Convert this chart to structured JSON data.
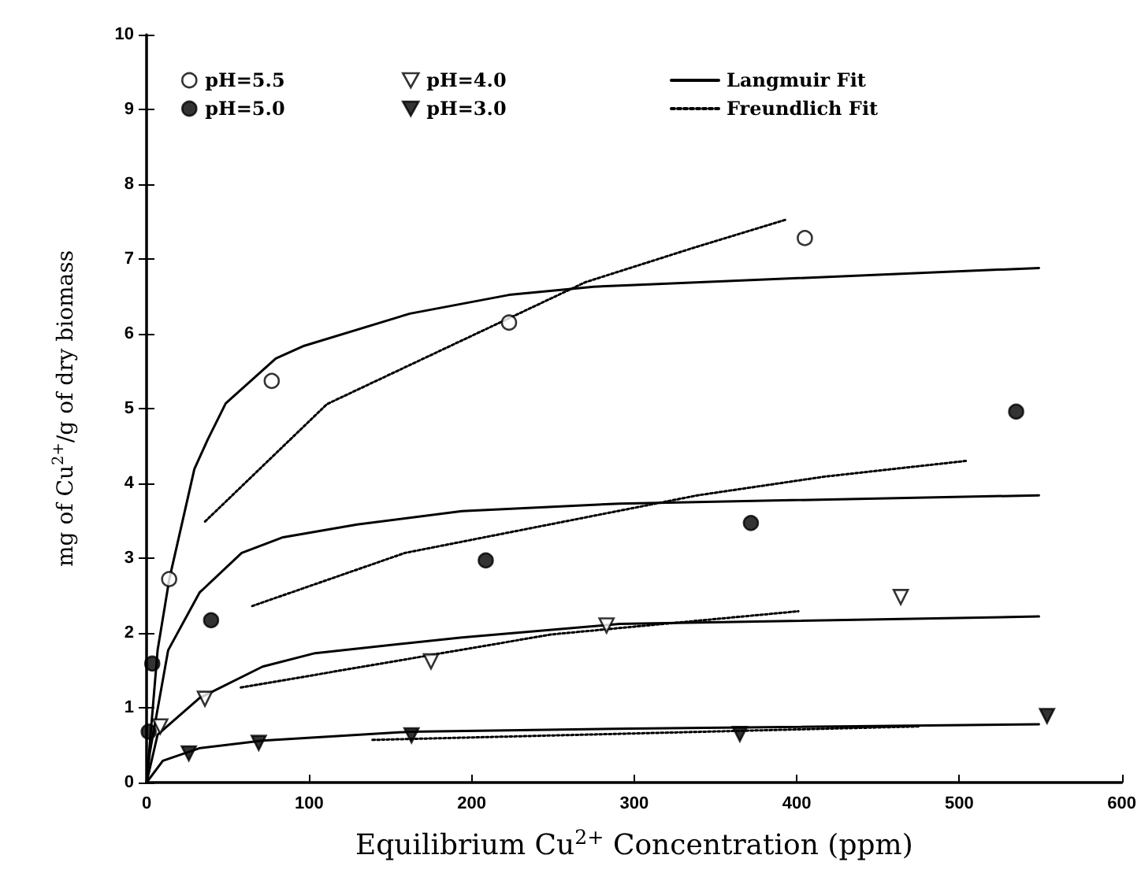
{
  "chart_data": {
    "type": "scatter",
    "xlabel": "Equilibrium Cu$^{2+}$ Concentration (ppm)",
    "ylabel": "mg of Cu$^{2+}$/g of dry biomass",
    "xlim": [
      0,
      600
    ],
    "xticks": [
      0,
      100,
      200,
      300,
      400,
      500,
      600
    ],
    "ylim": [
      0,
      10
    ],
    "yticks": [
      0,
      1,
      2,
      3,
      4,
      5,
      6,
      7,
      8,
      9,
      10
    ],
    "grid": false,
    "legend": "top",
    "series": [
      {
        "name": "pH=5.5",
        "type": "scatter",
        "marker": "circle",
        "color": "#ffffff",
        "x": [
          13.9,
          77,
          223,
          405
        ],
        "values": [
          2.72,
          5.37,
          6.15,
          7.28
        ]
      },
      {
        "name": "pH=5.0",
        "type": "scatter",
        "marker": "circle",
        "color": "#000000",
        "x": [
          1.3,
          3.5,
          39.7,
          208.7,
          371.8,
          535
        ],
        "values": [
          0.68,
          1.59,
          2.17,
          2.97,
          3.47,
          4.96
        ]
      },
      {
        "name": "pH=4.0",
        "type": "scatter",
        "marker": "triangle",
        "color": "#ffffff",
        "x": [
          8.4,
          35.9,
          175,
          283,
          464
        ],
        "values": [
          0.75,
          1.12,
          1.62,
          2.1,
          2.48
        ]
      },
      {
        "name": "pH=3.0",
        "type": "scatter",
        "marker": "triangle",
        "color": "#000000",
        "x": [
          26,
          69,
          163,
          365,
          554
        ],
        "values": [
          0.39,
          0.53,
          0.63,
          0.65,
          0.89
        ]
      },
      {
        "name": "Langmuir Fit",
        "type": "line",
        "line_style": "solid",
        "color": "#000000",
        "x": [
          0,
          6.8,
          14,
          29.4,
          37.5,
          48.7,
          79.5,
          97,
          162,
          223,
          275,
          297.5,
          549
        ],
        "values": [
          0,
          1.77,
          2.72,
          4.19,
          4.58,
          5.07,
          5.67,
          5.84,
          6.27,
          6.52,
          6.63,
          6.65,
          6.88
        ]
      },
      {
        "type": "line",
        "line_style": "solid",
        "color": "#000000",
        "x": [
          0,
          2,
          13.3,
          32.6,
          58.5,
          84,
          129.5,
          194,
          291,
          549
        ],
        "values": [
          0,
          0.4,
          1.77,
          2.54,
          3.07,
          3.28,
          3.45,
          3.63,
          3.73,
          3.84
        ]
      },
      {
        "type": "line",
        "line_style": "solid",
        "color": "#000000",
        "x": [
          0,
          6.8,
          32.6,
          71.4,
          103.7,
          194,
          291,
          549
        ],
        "values": [
          0,
          0.64,
          1.13,
          1.55,
          1.73,
          1.94,
          2.12,
          2.22
        ]
      },
      {
        "type": "line",
        "line_style": "solid",
        "color": "#000000",
        "x": [
          0,
          10,
          32.6,
          71.4,
          162,
          297.5,
          549
        ],
        "values": [
          0,
          0.29,
          0.46,
          0.56,
          0.68,
          0.72,
          0.78
        ]
      },
      {
        "name": "Freundlich Fit",
        "type": "line",
        "line_style": "dotted",
        "color": "#000000",
        "x": [
          36,
          111,
          270,
          338,
          394
        ],
        "values": [
          3.49,
          5.06,
          6.69,
          7.16,
          7.53
        ]
      },
      {
        "type": "line",
        "line_style": "dotted",
        "color": "#000000",
        "x": [
          65,
          159,
          339,
          417,
          504
        ],
        "values": [
          2.36,
          3.07,
          3.84,
          4.09,
          4.3
        ]
      },
      {
        "type": "line",
        "line_style": "dotted",
        "color": "#000000",
        "x": [
          58,
          249,
          401
        ],
        "values": [
          1.27,
          1.98,
          2.29
        ]
      },
      {
        "type": "line",
        "line_style": "dotted",
        "color": "#000000",
        "x": [
          139,
          475
        ],
        "values": [
          0.57,
          0.75
        ]
      }
    ]
  }
}
